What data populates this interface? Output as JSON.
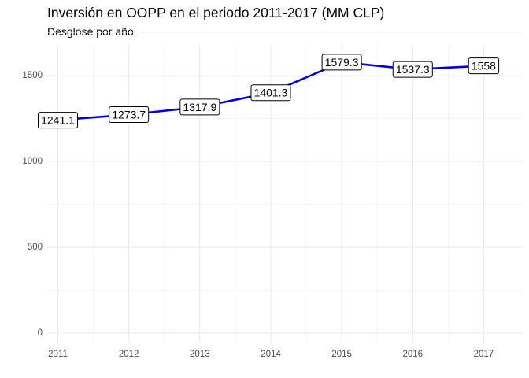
{
  "chart_data": {
    "type": "line",
    "title": "Inversión en OOPP en el periodo 2011-2017 (MM CLP)",
    "subtitle": "Desglose por año",
    "xlabel": "",
    "ylabel": "",
    "x": [
      "2011",
      "2012",
      "2013",
      "2014",
      "2015",
      "2016",
      "2017"
    ],
    "values": [
      1241.1,
      1273.7,
      1317.9,
      1401.3,
      1579.3,
      1537.3,
      1558
    ],
    "data_labels": [
      "1241.1",
      "1273.7",
      "1317.9",
      "1401.3",
      "1579.3",
      "1537.3",
      "1558"
    ],
    "y_ticks": [
      0,
      500,
      1000,
      1500
    ],
    "y_tick_labels": [
      "0",
      "500",
      "1000",
      "1500"
    ],
    "ylim": [
      -60,
      1680
    ],
    "grid": true,
    "legend": "none",
    "line_color": "#0000ee"
  }
}
